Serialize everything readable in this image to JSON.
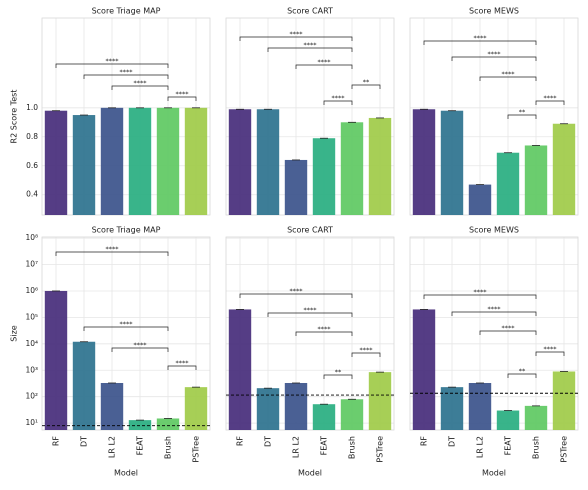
{
  "chart_data": [
    {
      "type": "bar",
      "title": "Score Triage MAP",
      "ylabel": "R2 Score Test",
      "values": [
        0.98,
        0.95,
        1.0,
        1.0,
        1.0,
        1.0
      ],
      "colors": [
        "#472d7b",
        "#2c728e",
        "#3b528b",
        "#28ae80",
        "#5ec962",
        "#a0cb48"
      ],
      "ylim": [
        0.26,
        1.62
      ],
      "yticks": [
        0.4,
        0.6,
        0.8,
        {
          "value": 1,
          "label": "1.0"
        }
      ],
      "annotations": [
        {
          "from": 0,
          "to": 4,
          "label": "****"
        },
        {
          "from": 1,
          "to": 4,
          "label": "****"
        },
        {
          "from": 2,
          "to": 4,
          "label": "****"
        },
        {
          "from": 4,
          "to": 5,
          "label": "****"
        }
      ]
    },
    {
      "type": "bar",
      "title": "Score CART",
      "values": [
        0.99,
        0.99,
        0.64,
        0.79,
        0.9,
        0.93
      ],
      "colors": [
        "#472d7b",
        "#2c728e",
        "#3b528b",
        "#28ae80",
        "#5ec962",
        "#a0cb48"
      ],
      "annotations": [
        {
          "from": 0,
          "to": 4,
          "label": "****"
        },
        {
          "from": 1,
          "to": 4,
          "label": "****"
        },
        {
          "from": 2,
          "to": 4,
          "label": "****"
        },
        {
          "from": 4,
          "to": 5,
          "label": "**"
        },
        {
          "from": 3,
          "to": 4,
          "label": "****"
        }
      ]
    },
    {
      "type": "bar",
      "title": "Score MEWS",
      "values": [
        0.99,
        0.98,
        0.47,
        0.69,
        0.74,
        0.89
      ],
      "colors": [
        "#472d7b",
        "#2c728e",
        "#3b528b",
        "#28ae80",
        "#5ec962",
        "#a0cb48"
      ],
      "annotations": [
        {
          "from": 0,
          "to": 4,
          "label": "****"
        },
        {
          "from": 1,
          "to": 4,
          "label": "****"
        },
        {
          "from": 2,
          "to": 4,
          "label": "****"
        },
        {
          "from": 4,
          "to": 5,
          "label": "****"
        },
        {
          "from": 3,
          "to": 4,
          "label": "**"
        }
      ]
    },
    {
      "type": "bar",
      "title": "Score Triage MAP",
      "ylabel": "Size",
      "xlabel": "Model",
      "log": true,
      "categories": [
        "RF",
        "DT",
        "LR L2",
        "FEAT",
        "Brush",
        "PSTree"
      ],
      "values": [
        1000000,
        12000,
        330,
        13,
        15,
        230
      ],
      "colors": [
        "#472d7b",
        "#2c728e",
        "#3b528b",
        "#28ae80",
        "#5ec962",
        "#a0cb48"
      ],
      "reference_line": 8,
      "ylim": [
        5.5,
        110000000
      ],
      "yticks": [
        {
          "value": 10,
          "label": "10¹"
        },
        {
          "value": 100,
          "label": "10²"
        },
        {
          "value": 1000,
          "label": "10³"
        },
        {
          "value": 10000,
          "label": "10⁴"
        },
        {
          "value": 100000,
          "label": "10⁵"
        },
        {
          "value": 1000000,
          "label": "10⁶"
        },
        {
          "value": 10000000,
          "label": "10⁷"
        },
        {
          "value": 100000000,
          "label": "10⁸"
        }
      ],
      "annotations": [
        {
          "from": 0,
          "to": 4,
          "label": "****"
        },
        {
          "from": 1,
          "to": 4,
          "label": "****"
        },
        {
          "from": 2,
          "to": 4,
          "label": "****"
        },
        {
          "from": 4,
          "to": 5,
          "label": "****"
        }
      ]
    },
    {
      "type": "bar",
      "title": "Score CART",
      "xlabel": "Model",
      "log": true,
      "categories": [
        "RF",
        "DT",
        "LR L2",
        "FEAT",
        "Brush",
        "PSTree"
      ],
      "values": [
        200000,
        210,
        330,
        52,
        80,
        850
      ],
      "colors": [
        "#472d7b",
        "#2c728e",
        "#3b528b",
        "#28ae80",
        "#5ec962",
        "#a0cb48"
      ],
      "reference_line": 115,
      "annotations": [
        {
          "from": 0,
          "to": 4,
          "label": "****"
        },
        {
          "from": 1,
          "to": 4,
          "label": "****"
        },
        {
          "from": 2,
          "to": 4,
          "label": "****"
        },
        {
          "from": 4,
          "to": 5,
          "label": "****"
        },
        {
          "from": 3,
          "to": 4,
          "label": "**"
        }
      ]
    },
    {
      "type": "bar",
      "title": "Score MEWS",
      "xlabel": "Model",
      "log": true,
      "categories": [
        "RF",
        "DT",
        "LR L2",
        "FEAT",
        "Brush",
        "PSTree"
      ],
      "values": [
        200000,
        230,
        330,
        30,
        45,
        900
      ],
      "colors": [
        "#472d7b",
        "#2c728e",
        "#3b528b",
        "#28ae80",
        "#5ec962",
        "#a0cb48"
      ],
      "reference_line": 135,
      "annotations": [
        {
          "from": 0,
          "to": 4,
          "label": "****"
        },
        {
          "from": 1,
          "to": 4,
          "label": "****"
        },
        {
          "from": 2,
          "to": 4,
          "label": "****"
        },
        {
          "from": 4,
          "to": 5,
          "label": "****"
        },
        {
          "from": 3,
          "to": 4,
          "label": "**"
        }
      ]
    }
  ]
}
